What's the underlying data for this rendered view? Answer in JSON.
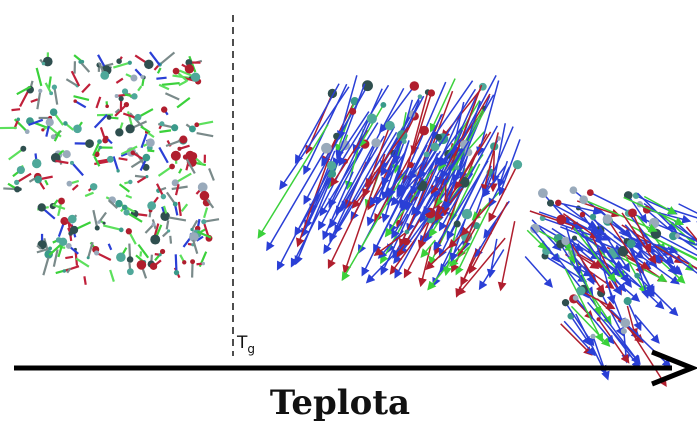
{
  "labels": {
    "transition": "T",
    "transition_sub": "g",
    "axis": "Teplota"
  }
}
